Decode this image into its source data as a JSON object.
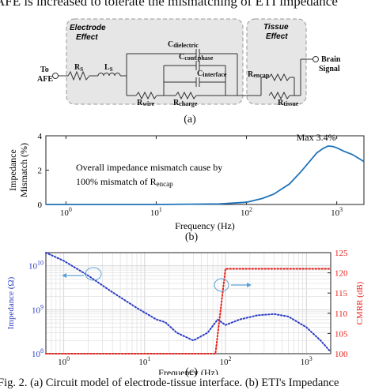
{
  "header_text": "AFE is increased to tolerate the mismatching of ETI impedance",
  "circuit": {
    "electrode_group_title": "Electrode Effect",
    "tissue_group_title": "Tissue Effect",
    "input_label": "To AFE",
    "output_label": "Brain Signal",
    "components": {
      "rs": "R_S",
      "ls": "L_S",
      "c_dielectric": "C_dielectric",
      "c_cont_phase": "C_cont.phase",
      "c_interface": "C_interface",
      "r_encap": "R_encap",
      "r_wire": "R_wire",
      "r_charge": "R_charge",
      "r_tissue": "R_tissue"
    }
  },
  "captions": {
    "a": "(a)",
    "b": "(b)",
    "c": "(c)"
  },
  "figure_caption": "Fig. 2. (a) Circuit model of electrode-tissue interface. (b) ETI's Impedance",
  "chart_data": [
    {
      "id": "b",
      "type": "line",
      "x_scale": "log",
      "xlabel": "Frequency (Hz)",
      "ylabel": "Impedance Mismatch (%)",
      "xlim": [
        0.6,
        2000
      ],
      "ylim": [
        0,
        4
      ],
      "x_ticks": [
        {
          "label_base": "10",
          "label_exp": "0",
          "value": 1
        },
        {
          "label_base": "10",
          "label_exp": "1",
          "value": 10
        },
        {
          "label_base": "10",
          "label_exp": "2",
          "value": 100
        },
        {
          "label_base": "10",
          "label_exp": "3",
          "value": 1000
        }
      ],
      "y_ticks": [
        "0",
        "2",
        "4"
      ],
      "y_tick_values": [
        0,
        2,
        4
      ],
      "grid": false,
      "line_color": "#1f72b8",
      "annotations": {
        "max_label": "Max 3.4%",
        "note_line1": "Overall impedance mismatch cause by",
        "note_line2_prefix": "100% mismatch of R",
        "note_line2_sub": "encap"
      },
      "series": [
        {
          "x": [
            0.6,
            10,
            50,
            100,
            150,
            200,
            300,
            400,
            500,
            600,
            700,
            800,
            900,
            1000,
            1200,
            1500,
            2000
          ],
          "y": [
            0,
            0,
            0.03,
            0.13,
            0.35,
            0.6,
            1.2,
            1.9,
            2.5,
            3.0,
            3.25,
            3.4,
            3.38,
            3.3,
            3.1,
            2.9,
            2.5
          ]
        }
      ]
    },
    {
      "id": "c",
      "type": "line",
      "x_scale": "log",
      "xlabel": "Frequency (Hz)",
      "xlim": [
        0.6,
        2000
      ],
      "x_ticks": [
        {
          "label_base": "10",
          "label_exp": "0",
          "value": 1
        },
        {
          "label_base": "10",
          "label_exp": "1",
          "value": 10
        },
        {
          "label_base": "10",
          "label_exp": "2",
          "value": 100
        },
        {
          "label_base": "10",
          "label_exp": "3",
          "value": 1000
        }
      ],
      "grid": true,
      "left_axis": {
        "label": "Impedance (Ω)",
        "scale": "log",
        "ylim": [
          100000000,
          20000000000
        ],
        "color": "#2b3cc4",
        "ticks": [
          {
            "label_base": "10",
            "label_exp": "8",
            "value": 100000000
          },
          {
            "label_base": "10",
            "label_exp": "9",
            "value": 1000000000
          },
          {
            "label_base": "10",
            "label_exp": "10",
            "value": 10000000000
          }
        ]
      },
      "right_axis": {
        "label": "CMRR (dB)",
        "ylim": [
          100,
          125
        ],
        "color": "#e8201a",
        "ticks": [
          "100",
          "105",
          "110",
          "115",
          "120",
          "125"
        ],
        "tick_values": [
          100,
          105,
          110,
          115,
          120,
          125
        ]
      },
      "series": [
        {
          "axis": "left",
          "style": "dotted",
          "color": "#2b3cc4",
          "x": [
            0.6,
            1,
            2,
            4,
            8,
            14,
            18,
            25,
            40,
            60,
            80,
            100,
            150,
            250,
            400,
            600,
            1000,
            1500,
            2000
          ],
          "y": [
            20000000000,
            13000000000,
            6000000000,
            2500000000,
            1100000000,
            600000000,
            520000000,
            300000000,
            200000000,
            300000000,
            600000000,
            450000000,
            600000000,
            750000000,
            800000000,
            700000000,
            400000000,
            200000000,
            110000000
          ]
        },
        {
          "axis": "right",
          "style": "dotted",
          "color": "#e8201a",
          "x": [
            0.6,
            60,
            75,
            100,
            110,
            2000
          ],
          "y": [
            100,
            100,
            100,
            121,
            121,
            121
          ]
        }
      ]
    }
  ]
}
